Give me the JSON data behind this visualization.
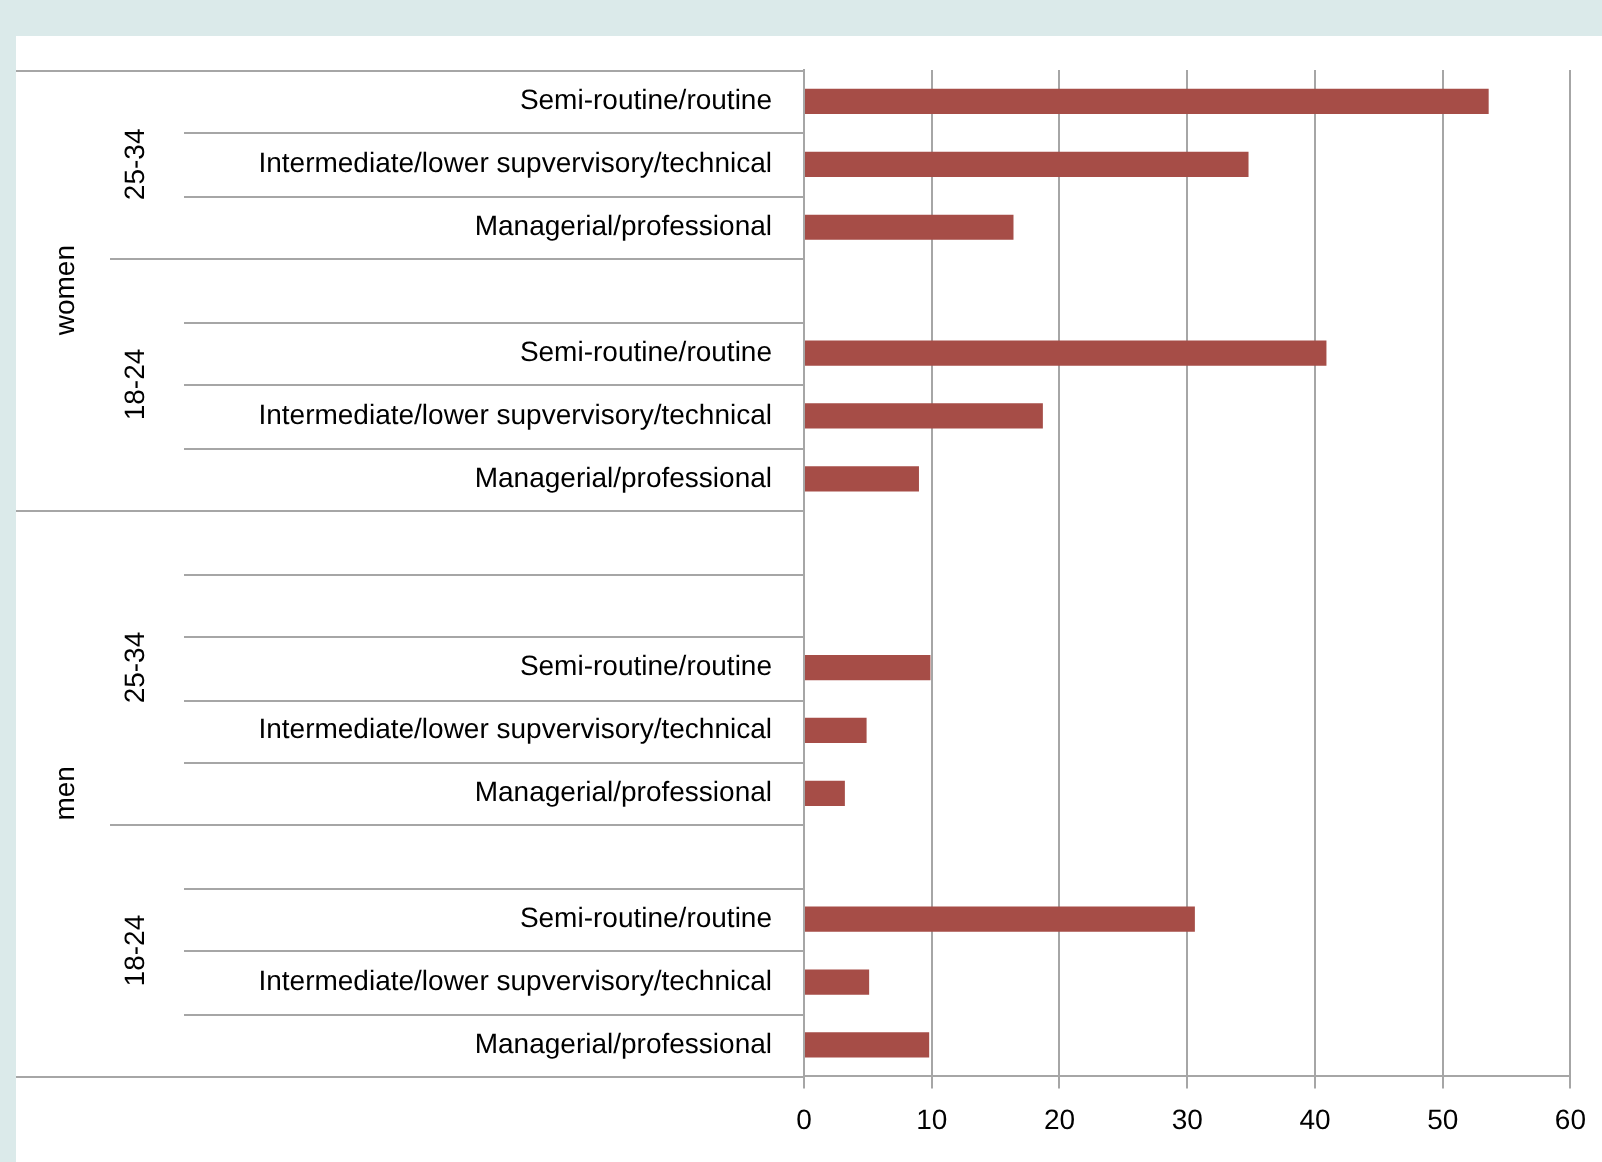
{
  "chart_data": {
    "type": "bar",
    "orientation": "horizontal",
    "categories": [
      "Semi-routine/routine",
      "Intermediate/lower supvervisory/technical",
      "Managerial/professional",
      null,
      "Semi-routine/routine",
      "Intermediate/lower supvervisory/technical",
      "Managerial/professional",
      null,
      null,
      "Semi-routine/routine",
      "Intermediate/lower supvervisory/technical",
      "Managerial/professional",
      null,
      "Semi-routine/routine",
      "Intermediate/lower supvervisory/technical",
      "Managerial/professional"
    ],
    "values": [
      53.6,
      34.8,
      16.4,
      null,
      40.9,
      18.7,
      9.0,
      null,
      null,
      9.9,
      4.9,
      3.2,
      null,
      30.6,
      5.1,
      9.8
    ],
    "color": "#a64d47",
    "xlim": [
      0,
      60
    ],
    "xticks": [
      0,
      10,
      20,
      30,
      40,
      50,
      60
    ],
    "grid": "x",
    "annotations": [
      "women",
      "25-34",
      "18-24",
      "men",
      "25-34",
      "18-24"
    ]
  }
}
